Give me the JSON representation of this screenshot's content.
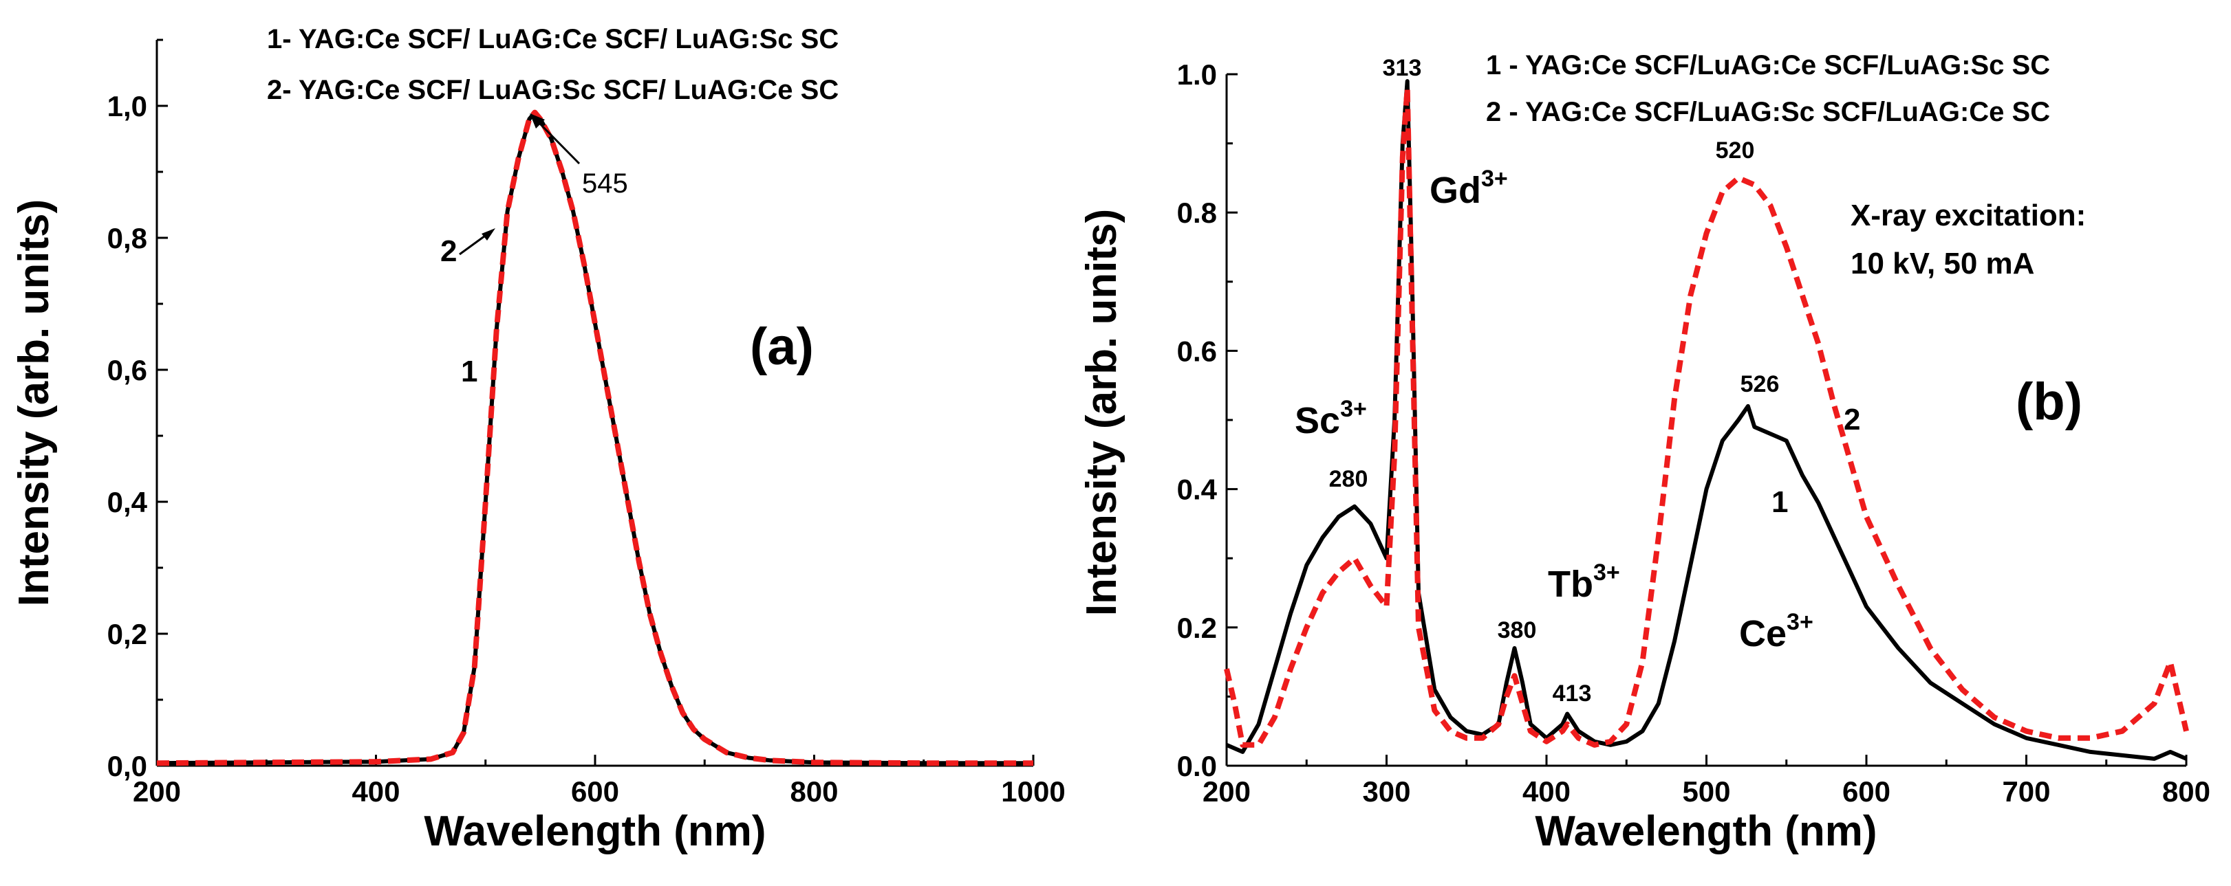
{
  "chart_data": [
    {
      "panel": "(a)",
      "type": "line",
      "title": "",
      "xlabel": "Wavelength (nm)",
      "ylabel": "Intensity (arb. units)",
      "xlim": [
        200,
        1000
      ],
      "ylim": [
        0,
        1.1
      ],
      "xticks": [
        200,
        400,
        600,
        800,
        1000
      ],
      "xtick_labels": [
        "200",
        "400",
        "600",
        "800",
        "1000"
      ],
      "yticks": [
        0,
        0.2,
        0.4,
        0.6,
        0.8,
        1.0
      ],
      "ytick_labels": [
        "0,0",
        "0,2",
        "0,4",
        "0,6",
        "0,8",
        "1,0"
      ],
      "legend": [
        "1- YAG:Ce SCF/ LuAG:Ce SCF/ LuAG:Sc SC",
        "2- YAG:Ce SCF/ LuAG:Sc SCF/ LuAG:Ce SC"
      ],
      "series": [
        {
          "name": "1",
          "color": "#000000",
          "style": "solid",
          "x": [
            200,
            300,
            400,
            450,
            470,
            480,
            490,
            500,
            510,
            520,
            530,
            540,
            545,
            550,
            560,
            570,
            580,
            590,
            600,
            610,
            620,
            630,
            640,
            650,
            660,
            670,
            680,
            690,
            700,
            720,
            740,
            760,
            800,
            900,
            1000
          ],
          "y": [
            0.004,
            0.005,
            0.006,
            0.01,
            0.02,
            0.05,
            0.15,
            0.4,
            0.66,
            0.84,
            0.92,
            0.98,
            0.99,
            0.98,
            0.95,
            0.9,
            0.84,
            0.76,
            0.67,
            0.58,
            0.49,
            0.4,
            0.31,
            0.23,
            0.17,
            0.12,
            0.08,
            0.055,
            0.04,
            0.02,
            0.012,
            0.008,
            0.005,
            0.004,
            0.004
          ]
        },
        {
          "name": "2",
          "color": "#ee1c1c",
          "style": "dash",
          "x": [
            200,
            300,
            400,
            450,
            470,
            480,
            490,
            500,
            510,
            520,
            530,
            540,
            545,
            550,
            560,
            570,
            580,
            590,
            600,
            610,
            620,
            630,
            640,
            650,
            660,
            670,
            680,
            690,
            700,
            720,
            740,
            760,
            800,
            900,
            1000
          ],
          "y": [
            0.004,
            0.005,
            0.006,
            0.01,
            0.02,
            0.05,
            0.15,
            0.4,
            0.66,
            0.84,
            0.92,
            0.98,
            0.99,
            0.98,
            0.95,
            0.9,
            0.84,
            0.76,
            0.67,
            0.58,
            0.49,
            0.4,
            0.31,
            0.23,
            0.17,
            0.12,
            0.08,
            0.055,
            0.04,
            0.02,
            0.012,
            0.008,
            0.005,
            0.004,
            0.004
          ]
        }
      ],
      "annotations": {
        "peak": "545",
        "curve1": "1",
        "curve2": "2",
        "panel_label": "(a)"
      }
    },
    {
      "panel": "(b)",
      "type": "line",
      "title": "",
      "xlabel": "Wavelength (nm)",
      "ylabel": "Intensity (arb. units)",
      "xlim": [
        200,
        800
      ],
      "ylim": [
        0,
        1.0
      ],
      "xticks": [
        200,
        300,
        400,
        500,
        600,
        700,
        800
      ],
      "xtick_labels": [
        "200",
        "300",
        "400",
        "500",
        "600",
        "700",
        "800"
      ],
      "yticks": [
        0,
        0.2,
        0.4,
        0.6,
        0.8,
        1.0
      ],
      "ytick_labels": [
        "0.0",
        "0.2",
        "0.4",
        "0.6",
        "0.8",
        "1.0"
      ],
      "legend": [
        "1 - YAG:Ce SCF/LuAG:Ce SCF/LuAG:Sc SC",
        "2 - YAG:Ce SCF/LuAG:Sc SCF/LuAG:Ce SC"
      ],
      "series": [
        {
          "name": "1",
          "color": "#000000",
          "style": "solid",
          "x": [
            200,
            210,
            220,
            230,
            240,
            250,
            260,
            270,
            280,
            290,
            300,
            305,
            310,
            313,
            316,
            320,
            330,
            340,
            350,
            360,
            370,
            375,
            380,
            385,
            390,
            400,
            410,
            413,
            420,
            430,
            440,
            450,
            460,
            470,
            480,
            490,
            500,
            510,
            520,
            526,
            530,
            540,
            550,
            560,
            570,
            580,
            590,
            600,
            620,
            640,
            660,
            680,
            700,
            720,
            740,
            760,
            780,
            790,
            800
          ],
          "y": [
            0.03,
            0.02,
            0.06,
            0.14,
            0.22,
            0.29,
            0.33,
            0.36,
            0.375,
            0.35,
            0.3,
            0.5,
            0.9,
            0.99,
            0.7,
            0.25,
            0.11,
            0.07,
            0.05,
            0.045,
            0.06,
            0.12,
            0.17,
            0.12,
            0.06,
            0.04,
            0.06,
            0.075,
            0.05,
            0.035,
            0.03,
            0.035,
            0.05,
            0.09,
            0.18,
            0.29,
            0.4,
            0.47,
            0.5,
            0.52,
            0.49,
            0.48,
            0.47,
            0.42,
            0.38,
            0.33,
            0.28,
            0.23,
            0.17,
            0.12,
            0.09,
            0.06,
            0.04,
            0.03,
            0.02,
            0.015,
            0.01,
            0.02,
            0.01
          ]
        },
        {
          "name": "2",
          "color": "#ee1c1c",
          "style": "dash",
          "x": [
            200,
            205,
            210,
            220,
            230,
            240,
            250,
            260,
            270,
            280,
            290,
            300,
            305,
            310,
            313,
            316,
            320,
            330,
            340,
            350,
            360,
            370,
            375,
            380,
            385,
            390,
            400,
            410,
            413,
            420,
            430,
            440,
            450,
            460,
            470,
            480,
            490,
            500,
            510,
            520,
            530,
            540,
            550,
            560,
            570,
            580,
            590,
            600,
            620,
            640,
            660,
            680,
            700,
            720,
            740,
            760,
            780,
            790,
            800
          ],
          "y": [
            0.14,
            0.09,
            0.03,
            0.03,
            0.07,
            0.14,
            0.2,
            0.25,
            0.28,
            0.3,
            0.26,
            0.23,
            0.45,
            0.88,
            0.98,
            0.65,
            0.2,
            0.08,
            0.05,
            0.04,
            0.04,
            0.06,
            0.1,
            0.13,
            0.09,
            0.05,
            0.035,
            0.05,
            0.06,
            0.04,
            0.03,
            0.035,
            0.06,
            0.15,
            0.33,
            0.53,
            0.68,
            0.77,
            0.83,
            0.85,
            0.84,
            0.81,
            0.75,
            0.68,
            0.61,
            0.52,
            0.44,
            0.36,
            0.26,
            0.17,
            0.11,
            0.07,
            0.05,
            0.04,
            0.04,
            0.05,
            0.09,
            0.15,
            0.05
          ]
        }
      ],
      "annotations": {
        "peak_313": "313",
        "peak_280": "280",
        "peak_380": "380",
        "peak_413": "413",
        "peak_520": "520",
        "peak_526": "526",
        "ion_gd": "Gd",
        "ion_gd_sup": "3+",
        "ion_sc": "Sc",
        "ion_sc_sup": "3+",
        "ion_tb": "Tb",
        "ion_tb_sup": "3+",
        "ion_ce": "Ce",
        "ion_ce_sup": "3+",
        "excitation_line1": "X-ray excitation:",
        "excitation_line2": "10 kV, 50 mA",
        "curve1": "1",
        "curve2": "2",
        "panel_label": "(b)"
      }
    }
  ]
}
